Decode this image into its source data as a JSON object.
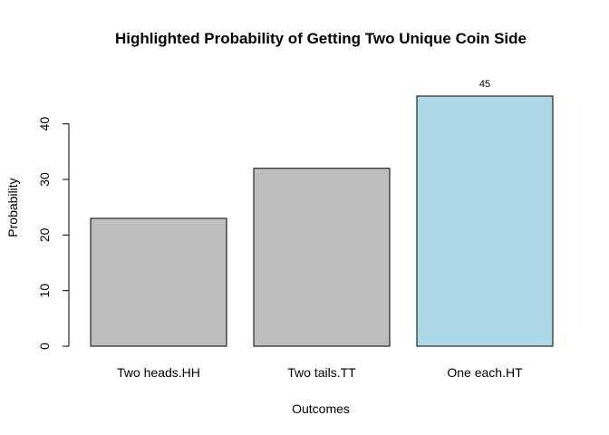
{
  "chart_data": {
    "type": "bar",
    "title": "Highlighted Probability of Getting Two Unique Coin Side",
    "xlabel": "Outcomes",
    "ylabel": "Probability",
    "categories": [
      "Two heads.HH",
      "Two tails.TT",
      "One each.HT"
    ],
    "values": [
      23,
      32,
      45
    ],
    "colors": [
      "#bebebe",
      "#bebebe",
      "#add8e6"
    ],
    "ylim": [
      0,
      45
    ],
    "yticks": [
      0,
      10,
      20,
      30,
      40
    ],
    "highlight": {
      "category": "One each.HT",
      "label": "45"
    },
    "grid": false,
    "legend": "none"
  }
}
